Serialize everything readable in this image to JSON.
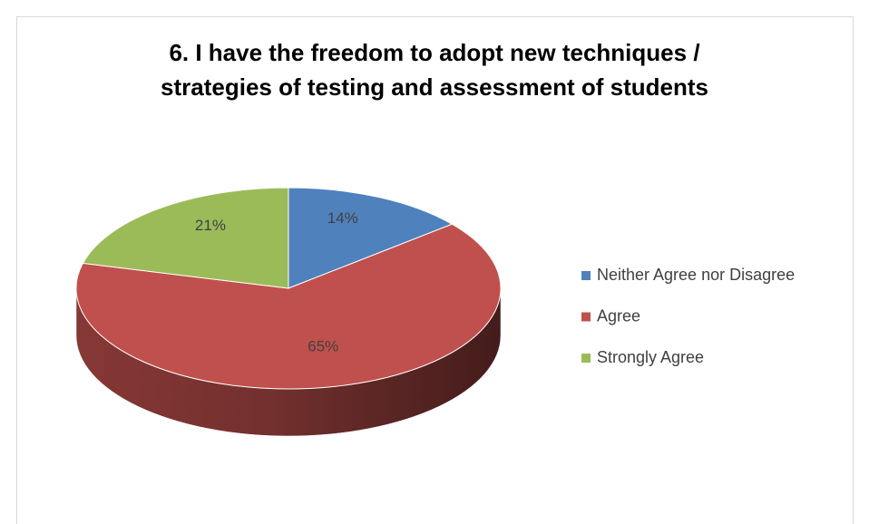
{
  "chart_data": {
    "type": "pie",
    "title": [
      "6. I have the freedom to adopt new techniques /",
      "strategies of testing and assessment of students"
    ],
    "categories": [
      "Neither Agree nor Disagree",
      "Agree",
      "Strongly Agree"
    ],
    "values": [
      14,
      65,
      21
    ],
    "value_labels": [
      "14%",
      "65%",
      "21%"
    ],
    "colors": [
      "#4f81bd",
      "#c0504d",
      "#9bbb59"
    ],
    "legend": "right"
  }
}
